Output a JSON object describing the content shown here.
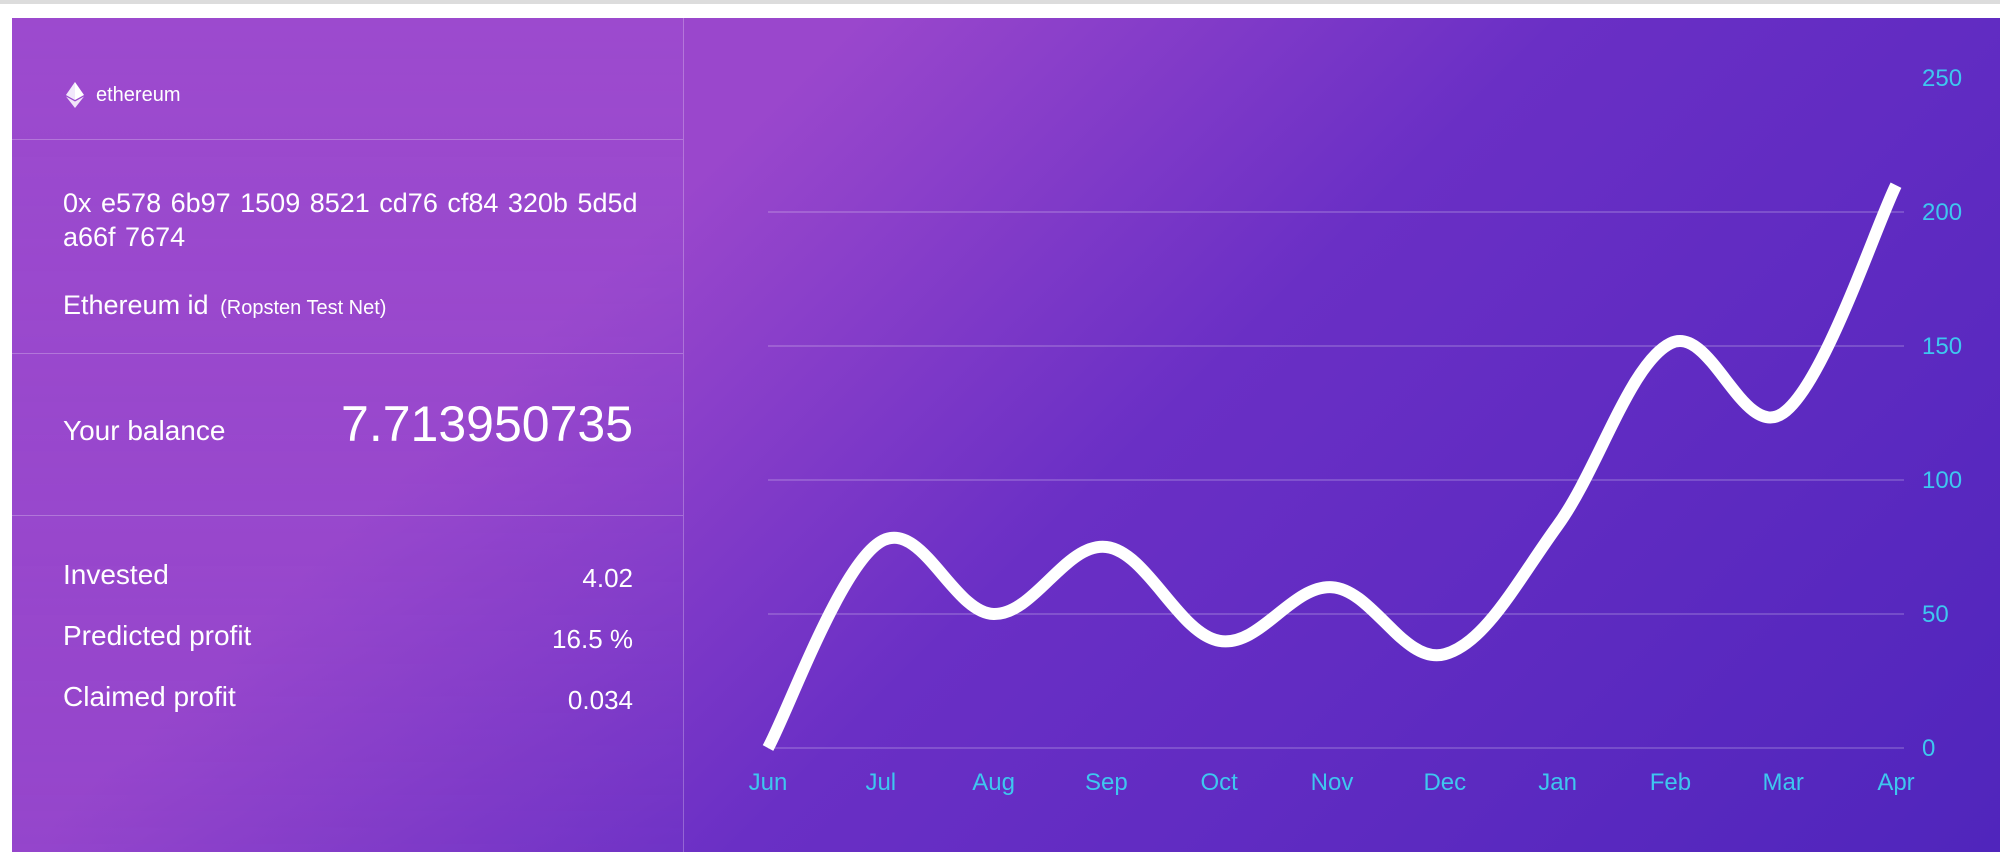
{
  "network": {
    "icon": "ethereum-icon",
    "label": "ethereum"
  },
  "account": {
    "address_line1": "0x e578 6b97 1509 8521 cd76 cf84 320b 5d5d",
    "address_line2": "a66f 7674",
    "id_label": "Ethereum id",
    "id_network": "(Ropsten Test Net)"
  },
  "balance": {
    "label": "Your balance",
    "value": "7.713950735"
  },
  "stats": {
    "invested_label": "Invested",
    "invested_value": "4.02",
    "predicted_label": "Predicted profit",
    "predicted_value": "16.5 %",
    "claimed_label": "Claimed profit",
    "claimed_value": "0.034"
  },
  "colors": {
    "accent_tick": "#3ec7ef",
    "line": "#ffffff"
  },
  "chart_data": {
    "type": "line",
    "x": [
      "Jun",
      "Jul",
      "Aug",
      "Sep",
      "Oct",
      "Nov",
      "Dec",
      "Jan",
      "Feb",
      "Mar",
      "Apr"
    ],
    "values": [
      0,
      77,
      50,
      75,
      40,
      60,
      35,
      83,
      151,
      125,
      210
    ],
    "yticks": [
      0,
      50,
      100,
      150,
      200,
      250
    ],
    "ylim": [
      0,
      250
    ],
    "grid": true,
    "y_axis_side": "right",
    "title": "",
    "xlabel": "",
    "ylabel": ""
  }
}
